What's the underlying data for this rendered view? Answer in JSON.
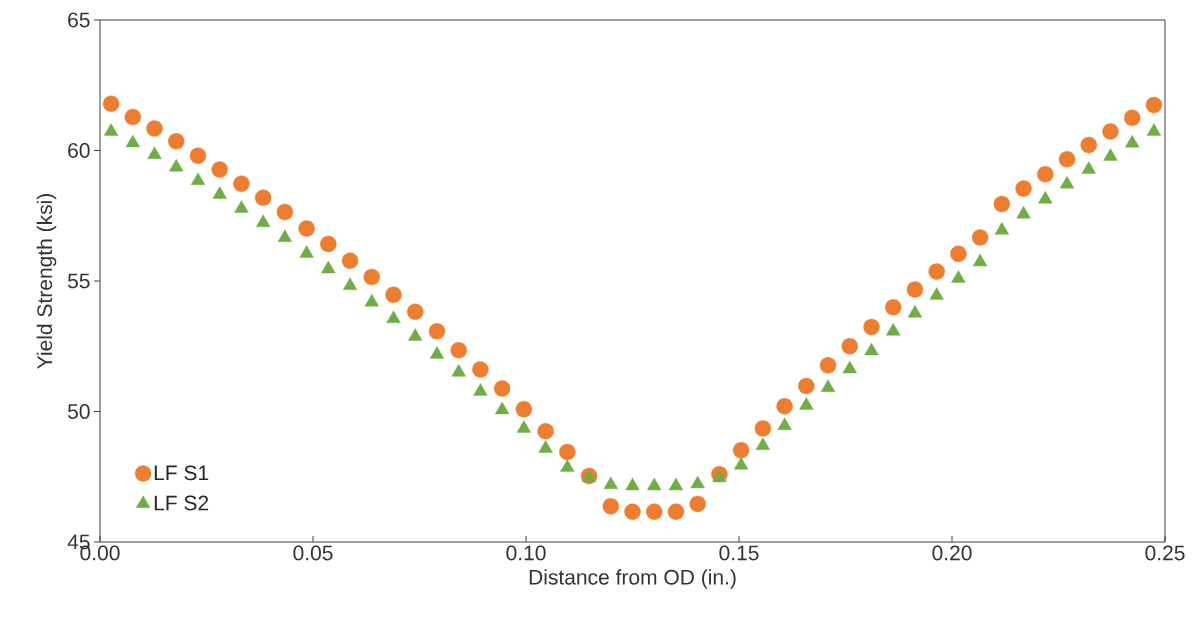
{
  "chart_data": {
    "type": "scatter",
    "xlabel": "Distance from OD (in.)",
    "ylabel": "Yield Strength (ksi)",
    "x": [
      0.0026,
      0.0077,
      0.0128,
      0.0179,
      0.023,
      0.0281,
      0.0332,
      0.0383,
      0.0434,
      0.0485,
      0.0536,
      0.0587,
      0.0638,
      0.0689,
      0.074,
      0.0791,
      0.0842,
      0.0893,
      0.0944,
      0.0995,
      0.1046,
      0.1097,
      0.1148,
      0.1199,
      0.125,
      0.1301,
      0.1352,
      0.1403,
      0.1454,
      0.1505,
      0.1556,
      0.1607,
      0.1658,
      0.1709,
      0.176,
      0.1811,
      0.1862,
      0.1913,
      0.1964,
      0.2015,
      0.2066,
      0.2117,
      0.2168,
      0.2219,
      0.227,
      0.2321,
      0.2372,
      0.2423,
      0.2474
    ],
    "series": [
      {
        "name": "LF S1",
        "color": "#ed7d31",
        "marker": "circle",
        "values": [
          61.79,
          61.28,
          60.84,
          60.35,
          59.8,
          59.27,
          58.73,
          58.19,
          57.64,
          57.01,
          56.42,
          55.78,
          55.15,
          54.47,
          53.82,
          53.07,
          52.35,
          51.61,
          50.88,
          50.09,
          49.24,
          48.45,
          47.53,
          46.37,
          46.16,
          46.16,
          46.16,
          46.46,
          47.6,
          48.52,
          49.35,
          50.2,
          50.98,
          51.77,
          52.5,
          53.24,
          53.99,
          54.67,
          55.36,
          56.04,
          56.67,
          57.95,
          58.54,
          59.09,
          59.66,
          60.21,
          60.73,
          61.25,
          61.74
        ]
      },
      {
        "name": "LF S2",
        "color": "#70ad47",
        "marker": "triangle",
        "values": [
          60.73,
          60.29,
          59.84,
          59.36,
          58.84,
          58.31,
          57.78,
          57.23,
          56.66,
          56.05,
          55.46,
          54.82,
          54.19,
          53.55,
          52.87,
          52.18,
          51.5,
          50.77,
          50.06,
          49.35,
          48.58,
          47.85,
          47.46,
          47.19,
          47.15,
          47.15,
          47.15,
          47.22,
          47.46,
          47.94,
          48.69,
          49.45,
          50.23,
          50.91,
          51.63,
          52.32,
          53.07,
          53.76,
          54.44,
          55.1,
          55.73,
          56.94,
          57.56,
          58.13,
          58.71,
          59.27,
          59.77,
          60.28,
          60.73
        ]
      }
    ],
    "xlim": [
      0,
      0.25
    ],
    "xticks": [
      {
        "value": 0,
        "label": "0.00"
      },
      {
        "value": 0.05,
        "label": "0.05"
      },
      {
        "value": 0.1,
        "label": "0.10"
      },
      {
        "value": 0.15,
        "label": "0.15"
      },
      {
        "value": 0.2,
        "label": "0.20"
      },
      {
        "value": 0.25,
        "label": "0.25"
      }
    ],
    "ylim": [
      45,
      65
    ],
    "yticks": [
      45,
      50,
      55,
      60,
      65
    ],
    "grid": false,
    "legend": "bottom left"
  }
}
